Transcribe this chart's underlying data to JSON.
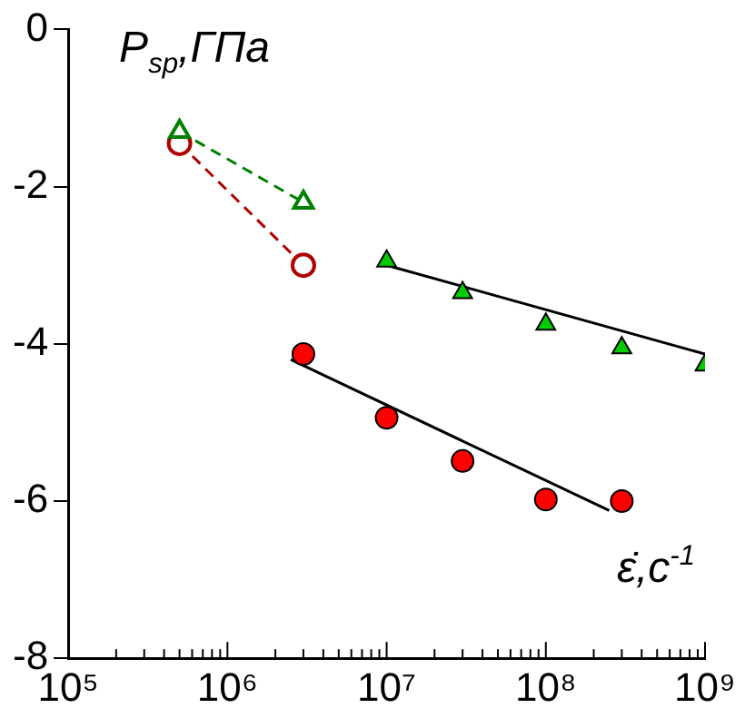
{
  "chart_data": {
    "type": "scatter",
    "xlabel": "ε̇,c$^{-1}$",
    "ylabel": "P$_{sp}$,ГПа",
    "log": "x",
    "xlim": [
      100000,
      1000000000
    ],
    "ylim": [
      -8,
      0
    ],
    "yticks": [
      -8,
      -6,
      -4,
      -2,
      0
    ],
    "xticks": [
      {
        "value": 100000,
        "label": "10⁵"
      },
      {
        "value": 200000,
        "label": null
      },
      {
        "value": 300000,
        "label": null
      },
      {
        "value": 400000,
        "label": null
      },
      {
        "value": 500000,
        "label": null
      },
      {
        "value": 600000,
        "label": null
      },
      {
        "value": 700000,
        "label": null
      },
      {
        "value": 800000,
        "label": null
      },
      {
        "value": 900000,
        "label": null
      },
      {
        "value": 1000000,
        "label": "10⁶"
      },
      {
        "value": 2000000,
        "label": null
      },
      {
        "value": 3000000,
        "label": null
      },
      {
        "value": 4000000,
        "label": null
      },
      {
        "value": 5000000,
        "label": null
      },
      {
        "value": 6000000,
        "label": null
      },
      {
        "value": 7000000,
        "label": null
      },
      {
        "value": 8000000,
        "label": null
      },
      {
        "value": 9000000,
        "label": null
      },
      {
        "value": 10000000,
        "label": "10⁷"
      },
      {
        "value": 20000000,
        "label": null
      },
      {
        "value": 30000000,
        "label": null
      },
      {
        "value": 40000000,
        "label": null
      },
      {
        "value": 50000000,
        "label": null
      },
      {
        "value": 60000000,
        "label": null
      },
      {
        "value": 70000000,
        "label": null
      },
      {
        "value": 80000000,
        "label": null
      },
      {
        "value": 90000000,
        "label": null
      },
      {
        "value": 100000000,
        "label": "10⁸"
      },
      {
        "value": 200000000,
        "label": null
      },
      {
        "value": 300000000,
        "label": null
      },
      {
        "value": 400000000,
        "label": null
      },
      {
        "value": 500000000,
        "label": null
      },
      {
        "value": 600000000,
        "label": null
      },
      {
        "value": 700000000,
        "label": null
      },
      {
        "value": 800000000,
        "label": null
      },
      {
        "value": 900000000,
        "label": null
      },
      {
        "value": 1000000000,
        "label": "10⁹"
      }
    ],
    "grid": false,
    "legend": false,
    "series": [
      {
        "type": "line",
        "line_style": "dashed",
        "marker": "triangle",
        "color": "#008000",
        "x": [
          500000,
          3000000
        ],
        "values": [
          -1.3,
          -2.2
        ]
      },
      {
        "type": "line",
        "line_style": "dashed",
        "marker": "circle",
        "color": "#b00000",
        "x": [
          500000,
          3000000
        ],
        "values": [
          -1.45,
          -3.0
        ]
      },
      {
        "marker": "triangle",
        "color": "#00cc00",
        "x": [
          10000000,
          30000000,
          100000000,
          300000000,
          1000000000
        ],
        "values": [
          -2.95,
          -3.35,
          -3.75,
          -4.05,
          -4.27
        ]
      },
      {
        "marker": "circle",
        "color": "#ff0000",
        "x": [
          3000000,
          10000000,
          30000000,
          100000000,
          300000000
        ],
        "values": [
          -4.13,
          -4.94,
          -5.49,
          -5.98,
          -6.0
        ]
      },
      {
        "type": "line",
        "line_style": "solid",
        "marker": "none",
        "color": "#000000",
        "x": [
          10000000,
          1000000000
        ],
        "values": [
          -3.0,
          -4.13
        ]
      },
      {
        "type": "line",
        "line_style": "solid",
        "marker": "none",
        "color": "#000000",
        "x": [
          2500000,
          250000000
        ],
        "values": [
          -4.2,
          -6.12
        ]
      }
    ]
  }
}
